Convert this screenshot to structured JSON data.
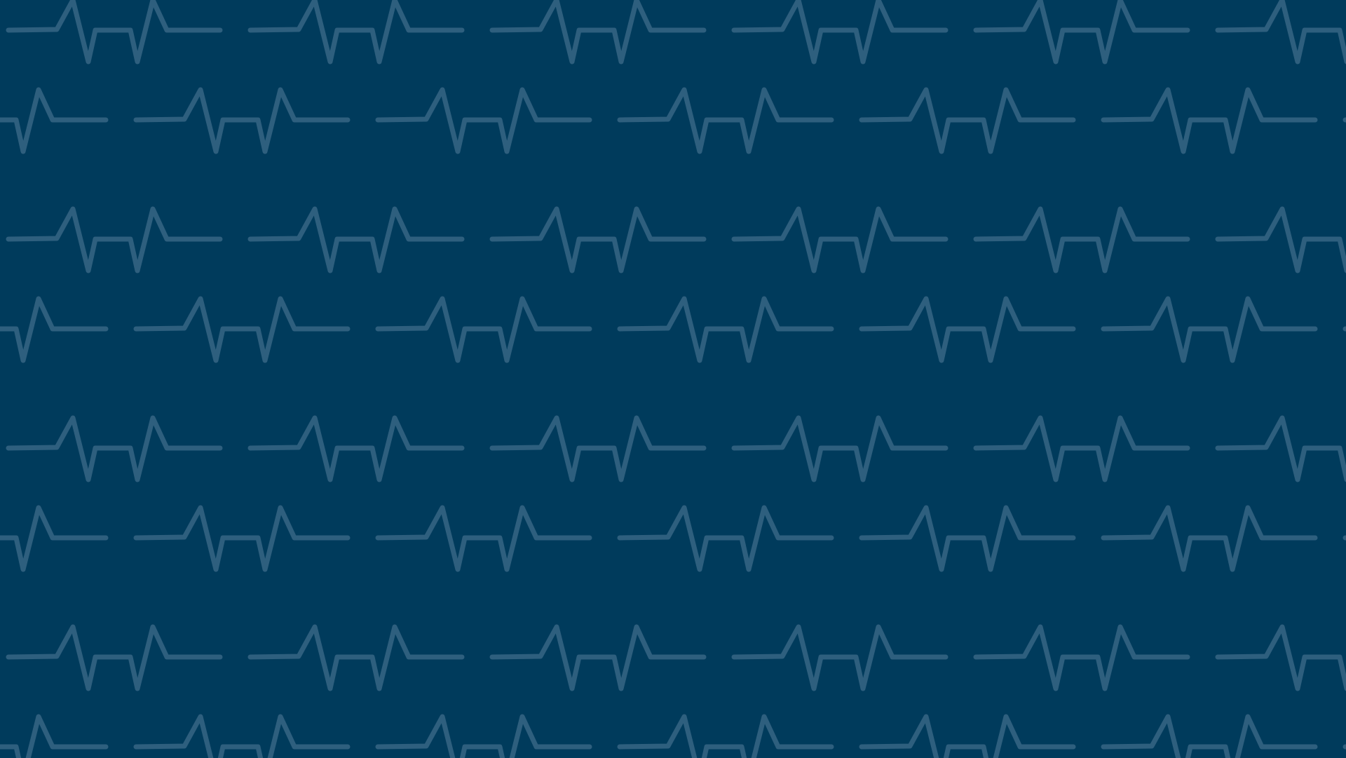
{
  "theme": {
    "background_color": "#003b5c",
    "pulse_line_color": "#2e5f7e"
  },
  "pattern": {
    "motif": "heartbeat-pulse-line",
    "arrangement": "staggered-rows"
  }
}
